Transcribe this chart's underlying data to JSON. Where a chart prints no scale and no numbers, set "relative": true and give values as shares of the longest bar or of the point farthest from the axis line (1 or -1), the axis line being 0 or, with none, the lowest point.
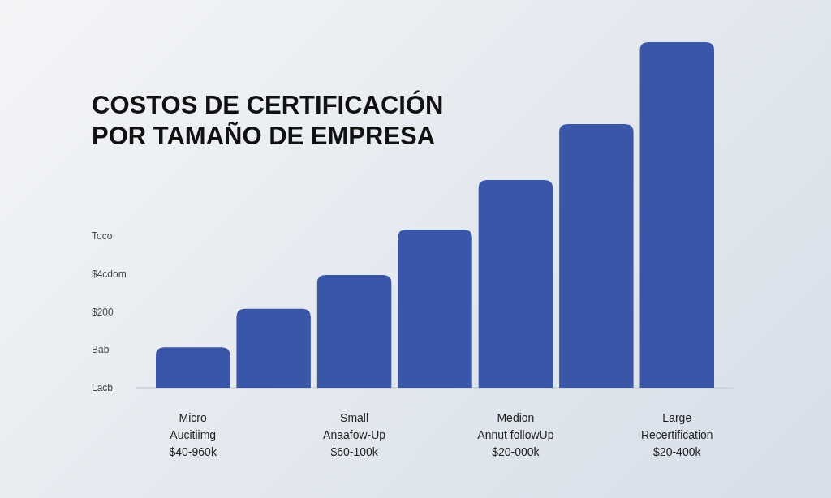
{
  "chart_data": {
    "type": "bar",
    "title": "COSTOS DE CERTIFICACIÓN\nPOR TAMAÑO DE EMPRESA",
    "relative": true,
    "categories": [
      "Micro\nAucitiimg\n$40-960k",
      null,
      "Small\nAnaafow-Up\n$60-100k",
      null,
      "Medion\nAnnut followUp\n$20-000k",
      null,
      "Large\nRecertification\n$20-400k"
    ],
    "values": [
      0.117,
      0.228,
      0.326,
      0.458,
      0.601,
      0.763,
      1.0
    ],
    "color": "#3a56a8",
    "annotations": [
      "Toco",
      "$4cdom",
      "$200",
      "Bab",
      "Lacb"
    ]
  }
}
